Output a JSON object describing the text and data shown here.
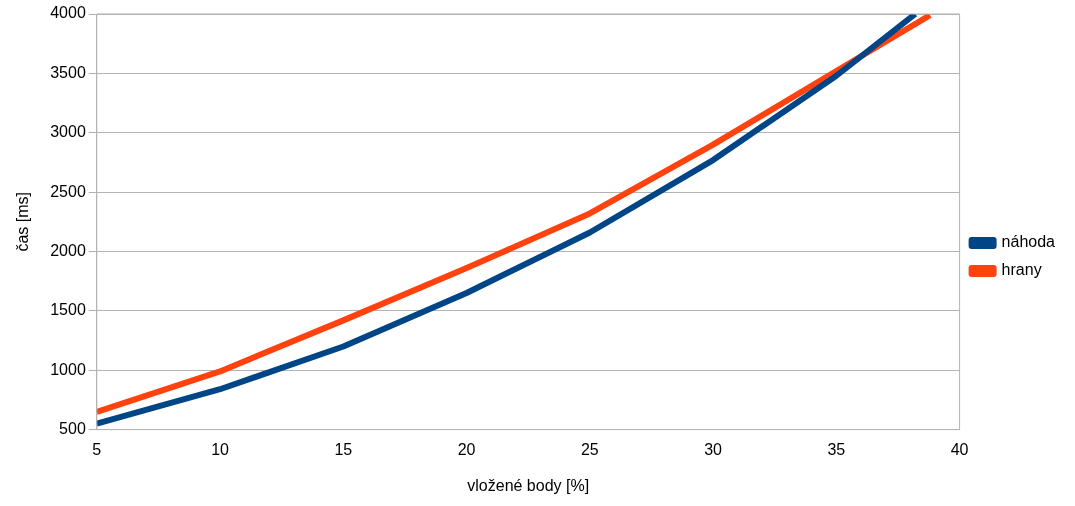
{
  "chart_data": {
    "type": "line",
    "xlabel": "vložené body [%]",
    "ylabel": "čas [ms]",
    "xlim": [
      5,
      40
    ],
    "xticks": [
      5,
      10,
      15,
      20,
      25,
      30,
      35,
      40
    ],
    "ylim": [
      500,
      4000
    ],
    "yticks": [
      500,
      1000,
      1500,
      2000,
      2500,
      3000,
      3500,
      4000
    ],
    "grid": "y",
    "legend": "right",
    "marker": "none",
    "line_style": "solid",
    "series": [
      {
        "name": "náhoda",
        "color": "#004586",
        "x": [
          5,
          10,
          15,
          20,
          25,
          30,
          35,
          38.2
        ],
        "values": [
          550,
          840,
          1200,
          1650,
          2160,
          2770,
          3480,
          4000
        ]
      },
      {
        "name": "hrany",
        "color": "#ff420e",
        "x": [
          5,
          10,
          15,
          20,
          25,
          30,
          35,
          38.8
        ],
        "values": [
          650,
          990,
          1420,
          1860,
          2320,
          2900,
          3520,
          3990
        ]
      }
    ]
  }
}
